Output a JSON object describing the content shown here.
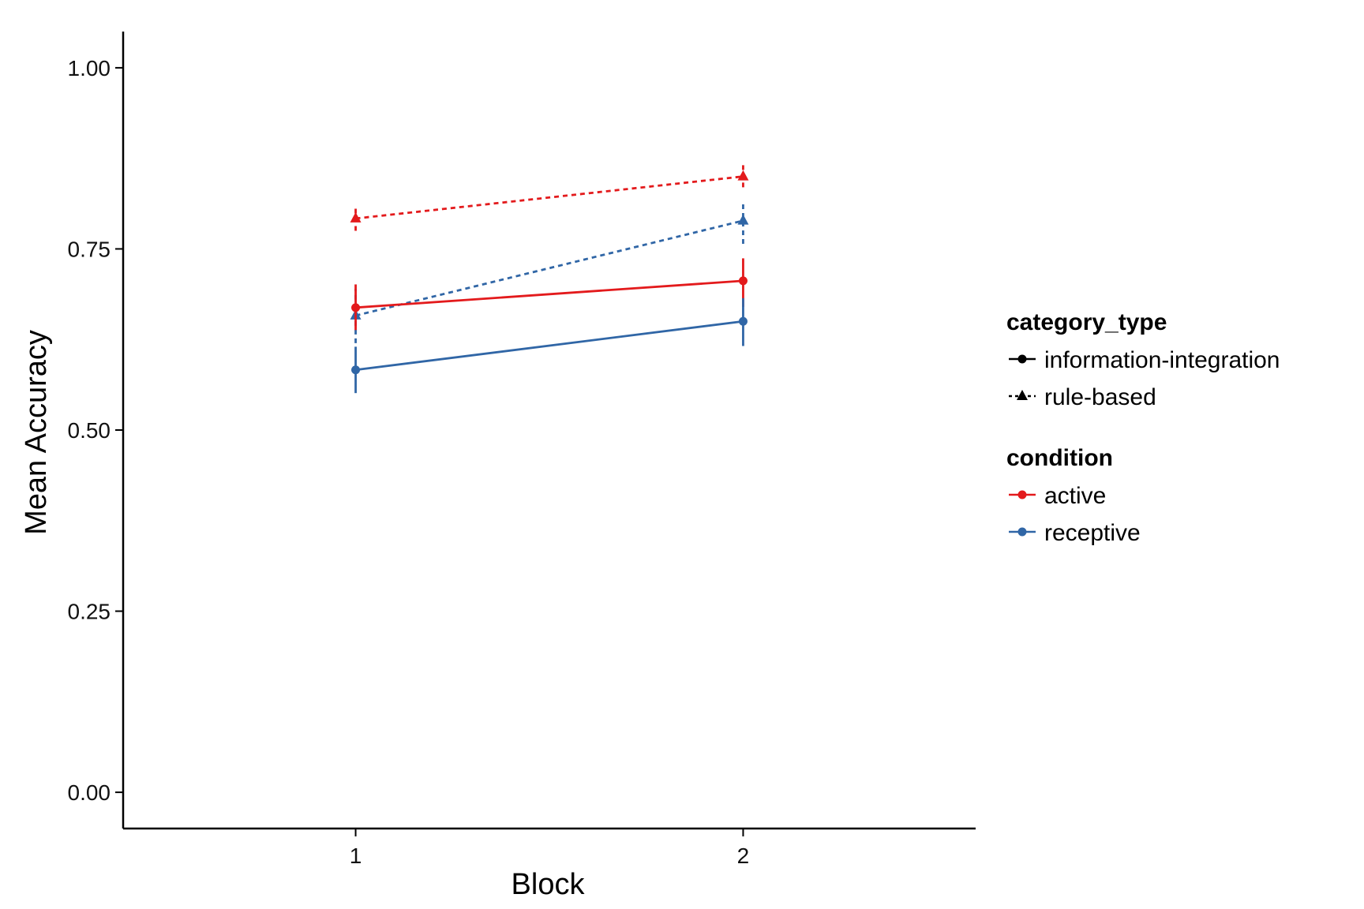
{
  "chart_data": {
    "type": "line",
    "xlabel": "Block",
    "ylabel": "Mean Accuracy",
    "x": [
      1,
      2
    ],
    "x_tick_labels": [
      "1",
      "2"
    ],
    "xlim": [
      0.4,
      2.6
    ],
    "ylim": [
      -0.05,
      1.05
    ],
    "y_ticks": [
      0.0,
      0.25,
      0.5,
      0.75,
      1.0
    ],
    "y_tick_labels": [
      "0.00",
      "0.25",
      "0.50",
      "0.75",
      "1.00"
    ],
    "grid": false,
    "legend_position": "right",
    "legend": {
      "category_type": {
        "title": "category_type",
        "items": [
          {
            "label": "information-integration",
            "linestyle": "solid",
            "marker": "circle"
          },
          {
            "label": "rule-based",
            "linestyle": "dotted",
            "marker": "triangle"
          }
        ]
      },
      "condition": {
        "title": "condition",
        "items": [
          {
            "label": "active",
            "color": "#e31a1c"
          },
          {
            "label": "receptive",
            "color": "#3066a6"
          }
        ]
      }
    },
    "series": [
      {
        "condition": "active",
        "category_type": "rule-based",
        "color": "#e31a1c",
        "linestyle": "dotted",
        "marker": "triangle",
        "values": [
          0.792,
          0.85
        ],
        "error_low": [
          0.775,
          0.835
        ],
        "error_high": [
          0.81,
          0.867
        ]
      },
      {
        "condition": "receptive",
        "category_type": "rule-based",
        "color": "#3066a6",
        "linestyle": "dotted",
        "marker": "triangle",
        "values": [
          0.658,
          0.789
        ],
        "error_low": [
          0.62,
          0.757
        ],
        "error_high": [
          0.695,
          0.812
        ]
      },
      {
        "condition": "active",
        "category_type": "information-integration",
        "color": "#e31a1c",
        "linestyle": "solid",
        "marker": "circle",
        "values": [
          0.669,
          0.706
        ],
        "error_low": [
          0.638,
          0.67
        ],
        "error_high": [
          0.701,
          0.737
        ]
      },
      {
        "condition": "receptive",
        "category_type": "information-integration",
        "color": "#3066a6",
        "linestyle": "solid",
        "marker": "circle",
        "values": [
          0.583,
          0.65
        ],
        "error_low": [
          0.551,
          0.616
        ],
        "error_high": [
          0.615,
          0.682
        ]
      }
    ]
  }
}
